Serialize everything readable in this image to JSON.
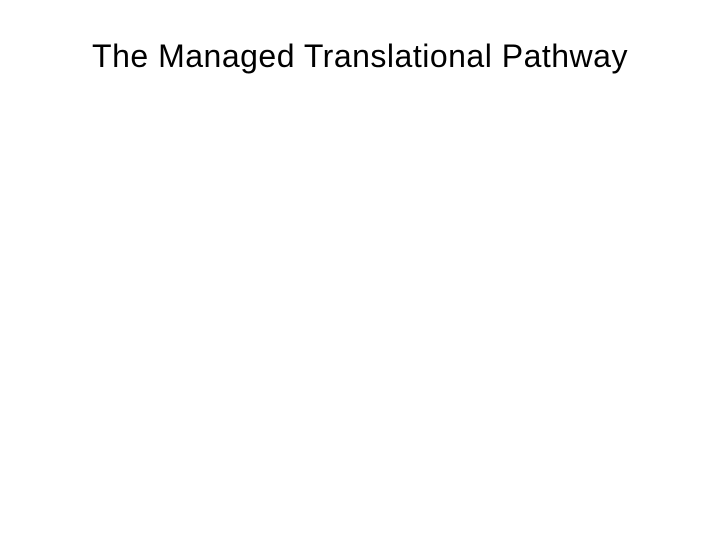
{
  "slide": {
    "title": "The Managed Translational Pathway",
    "title_fontsize": 32,
    "title_color": "#000000",
    "background_color": "#ffffff",
    "title_align": "center",
    "title_font_family": "Arial",
    "title_font_weight": "normal"
  }
}
